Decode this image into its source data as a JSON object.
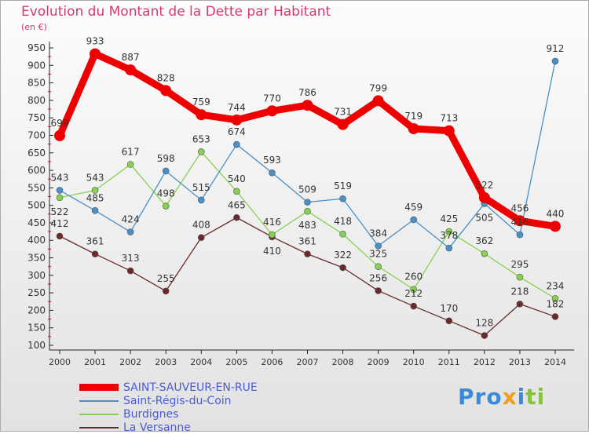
{
  "chart_data": {
    "type": "line",
    "title": "Evolution du Montant de la Dette par Habitant",
    "ylabel": "(en €)",
    "xlabel": "",
    "x": [
      "2000",
      "2001",
      "2002",
      "2003",
      "2004",
      "2005",
      "2006",
      "2007",
      "2008",
      "2009",
      "2010",
      "2011",
      "2012",
      "2013",
      "2014"
    ],
    "ylim": [
      100,
      950
    ],
    "yticks": [
      100,
      150,
      200,
      250,
      300,
      350,
      400,
      450,
      500,
      550,
      600,
      650,
      700,
      750,
      800,
      850,
      900,
      950
    ],
    "legend_position": "bottom-left",
    "series": [
      {
        "name": "SAINT-SAUVEUR-EN-RUE",
        "color": "#ee0000",
        "values": [
          699,
          933,
          887,
          828,
          759,
          744,
          770,
          786,
          731,
          799,
          719,
          713,
          522,
          456,
          440
        ]
      },
      {
        "name": "Saint-Régis-du-Coin",
        "color": "#4a90c8",
        "values": [
          543,
          485,
          424,
          598,
          515,
          674,
          593,
          509,
          519,
          384,
          459,
          378,
          505,
          416,
          912
        ]
      },
      {
        "name": "Burdignes",
        "color": "#88d050",
        "values": [
          522,
          543,
          617,
          498,
          653,
          540,
          416,
          483,
          418,
          325,
          260,
          425,
          362,
          295,
          234
        ]
      },
      {
        "name": "La Versanne",
        "color": "#6a2a2a",
        "values": [
          412,
          361,
          313,
          255,
          408,
          465,
          410,
          361,
          322,
          256,
          212,
          170,
          128,
          218,
          182
        ]
      }
    ]
  },
  "logo": "Proxiti"
}
